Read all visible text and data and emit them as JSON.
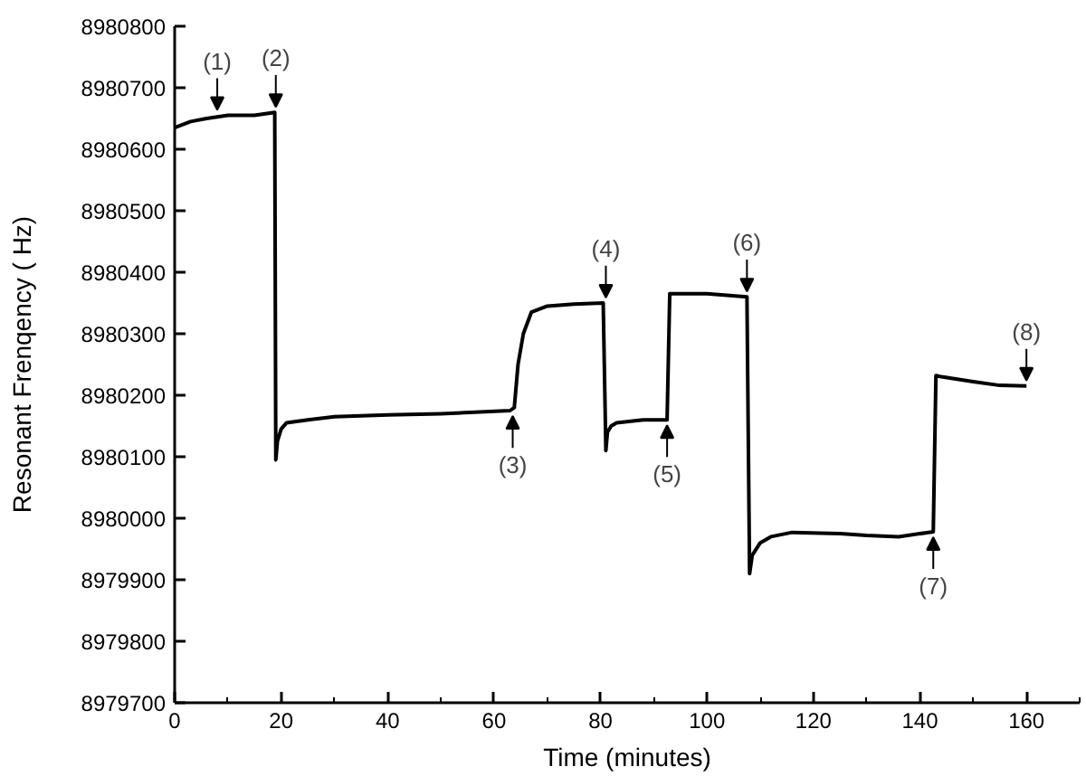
{
  "chart_data": {
    "type": "line",
    "xlabel": "Time (minutes)",
    "ylabel": "Resonant Frenqency ( Hz)",
    "xlim": [
      0,
      170
    ],
    "ylim": [
      8979700,
      8980800
    ],
    "xticks": [
      0,
      {
        "value": 10,
        "label": null
      },
      20,
      {
        "value": 30,
        "label": null
      },
      40,
      {
        "value": 50,
        "label": null
      },
      60,
      {
        "value": 70,
        "label": null
      },
      80,
      {
        "value": 90,
        "label": null
      },
      100,
      {
        "value": 110,
        "label": null
      },
      120,
      {
        "value": 130,
        "label": null
      },
      140,
      {
        "value": 150,
        "label": null
      },
      160,
      {
        "value": 170,
        "label": null
      }
    ],
    "yticks": [
      8979700,
      8979800,
      8979900,
      8980000,
      8980100,
      8980200,
      8980300,
      8980400,
      8980500,
      8980600,
      8980700,
      8980800
    ],
    "grid": false,
    "marker": "none",
    "line_style": "solid",
    "series": [
      {
        "color": "#000000",
        "x": [
          0,
          3,
          6,
          10,
          15,
          18.8,
          19,
          19.3,
          20,
          21,
          25,
          30,
          40,
          50,
          63,
          63.8,
          64.5,
          65.5,
          67,
          70,
          75,
          80.5,
          81,
          81.3,
          82,
          83,
          88,
          92.5,
          93,
          100,
          107.5,
          108,
          108.5,
          110,
          112,
          116,
          125,
          130,
          136,
          142.5,
          143,
          144,
          150,
          155,
          160
        ],
        "values": [
          8980635,
          8980645,
          8980650,
          8980655,
          8980655,
          8980660,
          8980095,
          8980125,
          8980145,
          8980155,
          8980160,
          8980165,
          8980168,
          8980170,
          8980175,
          8980180,
          8980250,
          8980300,
          8980335,
          8980345,
          8980348,
          8980350,
          8980110,
          8980140,
          8980150,
          8980155,
          8980160,
          8980160,
          8980365,
          8980365,
          8980360,
          8979910,
          8979940,
          8979960,
          8979970,
          8979977,
          8979975,
          8979972,
          8979970,
          8979978,
          8980232,
          8980230,
          8980222,
          8980216,
          8980215
        ]
      }
    ],
    "annotations": [
      {
        "text": "(1)",
        "x": 8,
        "y": 8980655
      },
      {
        "text": "(2)",
        "x": 19,
        "y": 8980660
      },
      {
        "text": "(3)",
        "x": 63.5,
        "y": 8980175
      },
      {
        "text": "(4)",
        "x": 81,
        "y": 8980350
      },
      {
        "text": "(5)",
        "x": 92.5,
        "y": 8980160
      },
      {
        "text": "(6)",
        "x": 107.5,
        "y": 8980360
      },
      {
        "text": "(7)",
        "x": 142.5,
        "y": 8979978
      },
      {
        "text": "(8)",
        "x": 160,
        "y": 8980215
      }
    ]
  }
}
